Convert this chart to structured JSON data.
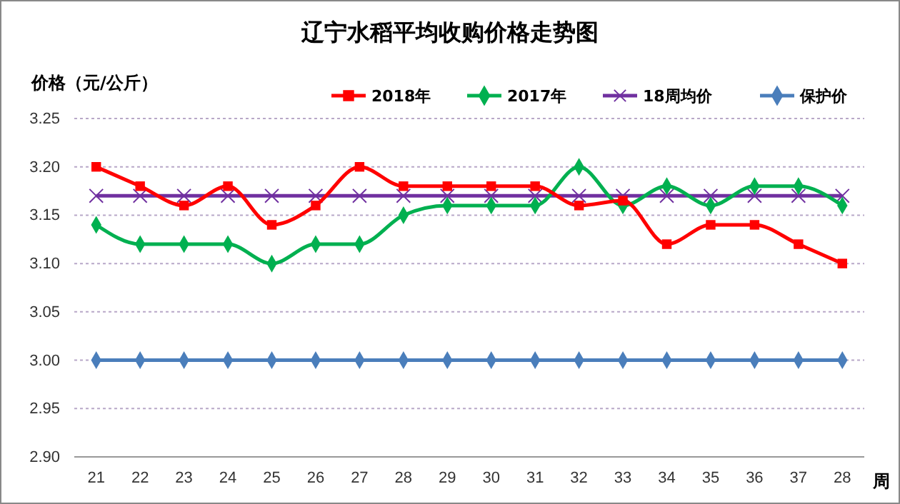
{
  "chart_data": {
    "type": "line",
    "title": "辽宁水稻平均收购价格走势图",
    "ylabel": "价格（元/公斤）",
    "xlabel": "周",
    "categories": [
      "21",
      "22",
      "23",
      "24",
      "25",
      "26",
      "27",
      "28",
      "29",
      "30",
      "31",
      "32",
      "33",
      "34",
      "35",
      "36",
      "37",
      "28"
    ],
    "series": [
      {
        "name": "2018年",
        "color": "#ff0000",
        "marker": "square",
        "values": [
          3.2,
          3.18,
          3.16,
          3.18,
          3.14,
          3.16,
          3.2,
          3.18,
          3.18,
          3.18,
          3.18,
          3.16,
          3.165,
          3.12,
          3.14,
          3.14,
          3.12,
          3.1
        ]
      },
      {
        "name": "2017年",
        "color": "#00b050",
        "marker": "diamond",
        "values": [
          3.14,
          3.12,
          3.12,
          3.12,
          3.1,
          3.12,
          3.12,
          3.15,
          3.16,
          3.16,
          3.16,
          3.2,
          3.16,
          3.18,
          3.16,
          3.18,
          3.18,
          3.16
        ]
      },
      {
        "name": "18周均价",
        "color": "#7030a0",
        "marker": "cross",
        "values": [
          3.17,
          3.17,
          3.17,
          3.17,
          3.17,
          3.17,
          3.17,
          3.17,
          3.17,
          3.17,
          3.17,
          3.17,
          3.17,
          3.17,
          3.17,
          3.17,
          3.17,
          3.17
        ]
      },
      {
        "name": "保护价",
        "color": "#4a7ebb",
        "marker": "diamond",
        "values": [
          3.0,
          3.0,
          3.0,
          3.0,
          3.0,
          3.0,
          3.0,
          3.0,
          3.0,
          3.0,
          3.0,
          3.0,
          3.0,
          3.0,
          3.0,
          3.0,
          3.0,
          3.0
        ]
      }
    ],
    "ylim": [
      2.9,
      3.25
    ],
    "yticks": [
      {
        "value": 2.9,
        "label": "2.90"
      },
      {
        "value": 2.95,
        "label": "2.95"
      },
      {
        "value": 3.0,
        "label": "3.00"
      },
      {
        "value": 3.05,
        "label": "3.05"
      },
      {
        "value": 3.1,
        "label": "3.10"
      },
      {
        "value": 3.15,
        "label": "3.15"
      },
      {
        "value": 3.2,
        "label": "3.20"
      },
      {
        "value": 3.25,
        "label": "3.25"
      }
    ],
    "grid": "y",
    "legend": "top right",
    "line_style": "solid"
  }
}
